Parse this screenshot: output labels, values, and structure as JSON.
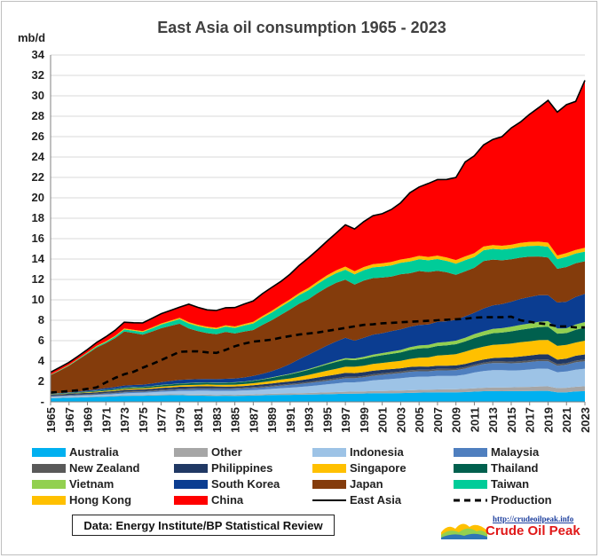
{
  "chart_data": {
    "type": "area",
    "title": "East Asia oil consumption 1965 - 2023",
    "ylabel": "mb/d",
    "ylim": [
      0,
      34
    ],
    "yticks": [
      0,
      2,
      4,
      6,
      8,
      10,
      12,
      14,
      16,
      18,
      20,
      22,
      24,
      26,
      28,
      30,
      32,
      34
    ],
    "ytick_labels": [
      "-",
      "2",
      "4",
      "6",
      "8",
      "10",
      "12",
      "14",
      "16",
      "18",
      "20",
      "22",
      "24",
      "26",
      "28",
      "30",
      "32",
      "34"
    ],
    "x": [
      1965,
      1966,
      1967,
      1968,
      1969,
      1970,
      1971,
      1972,
      1973,
      1974,
      1975,
      1976,
      1977,
      1978,
      1979,
      1980,
      1981,
      1982,
      1983,
      1984,
      1985,
      1986,
      1987,
      1988,
      1989,
      1990,
      1991,
      1992,
      1993,
      1994,
      1995,
      1996,
      1997,
      1998,
      1999,
      2000,
      2001,
      2002,
      2003,
      2004,
      2005,
      2006,
      2007,
      2008,
      2009,
      2010,
      2011,
      2012,
      2013,
      2014,
      2015,
      2016,
      2017,
      2018,
      2019,
      2020,
      2021,
      2022,
      2023
    ],
    "xtick_labels": [
      "1965",
      "1967",
      "1969",
      "1971",
      "1973",
      "1975",
      "1977",
      "1979",
      "1981",
      "1983",
      "1985",
      "1987",
      "1989",
      "1991",
      "1993",
      "1995",
      "1997",
      "1999",
      "2001",
      "2003",
      "2005",
      "2007",
      "2009",
      "2011",
      "2013",
      "2015",
      "2017",
      "2019",
      "2021",
      "2023"
    ],
    "grid": true,
    "legend_position": "bottom",
    "stack_order": [
      "Australia",
      "Other",
      "Indonesia",
      "Malaysia",
      "New Zealand",
      "Philippines",
      "Singapore",
      "Thailand",
      "Vietnam",
      "South Korea",
      "Japan",
      "Taiwan",
      "Hong Kong",
      "China"
    ],
    "series": [
      {
        "name": "Australia",
        "color": "#00b0f0",
        "values": [
          0.36,
          0.38,
          0.41,
          0.43,
          0.45,
          0.48,
          0.51,
          0.54,
          0.58,
          0.6,
          0.6,
          0.62,
          0.64,
          0.65,
          0.66,
          0.63,
          0.62,
          0.6,
          0.58,
          0.6,
          0.59,
          0.6,
          0.62,
          0.64,
          0.67,
          0.69,
          0.69,
          0.7,
          0.71,
          0.73,
          0.75,
          0.77,
          0.79,
          0.81,
          0.82,
          0.84,
          0.84,
          0.85,
          0.86,
          0.88,
          0.9,
          0.92,
          0.93,
          0.94,
          0.93,
          0.96,
          1.0,
          1.04,
          1.05,
          1.04,
          1.05,
          1.05,
          1.06,
          1.08,
          1.08,
          0.93,
          0.94,
          1.02,
          1.05
        ]
      },
      {
        "name": "Other",
        "color": "#a6a6a6",
        "values": [
          0.05,
          0.05,
          0.05,
          0.06,
          0.06,
          0.06,
          0.07,
          0.07,
          0.08,
          0.08,
          0.08,
          0.08,
          0.09,
          0.09,
          0.09,
          0.09,
          0.1,
          0.1,
          0.1,
          0.1,
          0.1,
          0.11,
          0.11,
          0.12,
          0.12,
          0.13,
          0.14,
          0.15,
          0.16,
          0.17,
          0.18,
          0.19,
          0.2,
          0.2,
          0.21,
          0.22,
          0.23,
          0.24,
          0.25,
          0.26,
          0.27,
          0.28,
          0.29,
          0.3,
          0.31,
          0.32,
          0.33,
          0.34,
          0.36,
          0.37,
          0.38,
          0.4,
          0.41,
          0.43,
          0.44,
          0.42,
          0.44,
          0.46,
          0.48
        ]
      },
      {
        "name": "Indonesia",
        "color": "#9dc3e6",
        "values": [
          0.1,
          0.1,
          0.11,
          0.12,
          0.12,
          0.13,
          0.14,
          0.15,
          0.17,
          0.19,
          0.21,
          0.23,
          0.26,
          0.29,
          0.32,
          0.36,
          0.38,
          0.4,
          0.4,
          0.39,
          0.4,
          0.41,
          0.43,
          0.45,
          0.48,
          0.52,
          0.56,
          0.6,
          0.66,
          0.72,
          0.78,
          0.84,
          0.92,
          0.9,
          0.96,
          1.05,
          1.1,
          1.15,
          1.2,
          1.28,
          1.3,
          1.28,
          1.32,
          1.3,
          1.32,
          1.4,
          1.55,
          1.65,
          1.7,
          1.7,
          1.65,
          1.65,
          1.7,
          1.75,
          1.72,
          1.55,
          1.6,
          1.68,
          1.72
        ]
      },
      {
        "name": "Malaysia",
        "color": "#4f7fbf",
        "values": [
          0.05,
          0.05,
          0.05,
          0.06,
          0.06,
          0.07,
          0.08,
          0.09,
          0.1,
          0.1,
          0.1,
          0.11,
          0.12,
          0.13,
          0.14,
          0.15,
          0.16,
          0.17,
          0.17,
          0.17,
          0.18,
          0.19,
          0.2,
          0.21,
          0.23,
          0.25,
          0.27,
          0.29,
          0.31,
          0.34,
          0.36,
          0.38,
          0.4,
          0.4,
          0.42,
          0.45,
          0.48,
          0.5,
          0.52,
          0.53,
          0.53,
          0.52,
          0.54,
          0.55,
          0.55,
          0.58,
          0.62,
          0.67,
          0.7,
          0.7,
          0.7,
          0.72,
          0.73,
          0.74,
          0.75,
          0.65,
          0.66,
          0.72,
          0.74
        ]
      },
      {
        "name": "New Zealand",
        "color": "#595959",
        "values": [
          0.06,
          0.06,
          0.06,
          0.06,
          0.07,
          0.07,
          0.07,
          0.07,
          0.08,
          0.08,
          0.08,
          0.08,
          0.08,
          0.08,
          0.08,
          0.08,
          0.08,
          0.08,
          0.08,
          0.08,
          0.09,
          0.09,
          0.09,
          0.09,
          0.1,
          0.1,
          0.11,
          0.11,
          0.12,
          0.12,
          0.13,
          0.13,
          0.14,
          0.14,
          0.14,
          0.14,
          0.15,
          0.15,
          0.15,
          0.15,
          0.15,
          0.16,
          0.16,
          0.16,
          0.15,
          0.15,
          0.15,
          0.15,
          0.16,
          0.16,
          0.16,
          0.17,
          0.17,
          0.17,
          0.17,
          0.15,
          0.15,
          0.16,
          0.16
        ]
      },
      {
        "name": "Philippines",
        "color": "#203864",
        "values": [
          0.1,
          0.1,
          0.11,
          0.11,
          0.12,
          0.13,
          0.14,
          0.15,
          0.16,
          0.16,
          0.16,
          0.17,
          0.18,
          0.18,
          0.19,
          0.19,
          0.18,
          0.18,
          0.18,
          0.16,
          0.15,
          0.16,
          0.18,
          0.2,
          0.21,
          0.22,
          0.23,
          0.26,
          0.28,
          0.31,
          0.35,
          0.38,
          0.39,
          0.37,
          0.36,
          0.35,
          0.34,
          0.33,
          0.32,
          0.33,
          0.32,
          0.3,
          0.31,
          0.3,
          0.31,
          0.31,
          0.3,
          0.31,
          0.33,
          0.37,
          0.42,
          0.45,
          0.47,
          0.48,
          0.5,
          0.44,
          0.45,
          0.48,
          0.5
        ]
      },
      {
        "name": "Singapore",
        "color": "#ffc000",
        "values": [
          0.02,
          0.03,
          0.03,
          0.04,
          0.05,
          0.06,
          0.07,
          0.08,
          0.09,
          0.1,
          0.1,
          0.11,
          0.12,
          0.13,
          0.14,
          0.15,
          0.16,
          0.17,
          0.17,
          0.18,
          0.18,
          0.19,
          0.2,
          0.22,
          0.24,
          0.27,
          0.3,
          0.35,
          0.4,
          0.45,
          0.5,
          0.55,
          0.6,
          0.62,
          0.64,
          0.66,
          0.68,
          0.7,
          0.72,
          0.78,
          0.85,
          0.9,
          1.0,
          1.05,
          1.1,
          1.2,
          1.25,
          1.25,
          1.28,
          1.3,
          1.35,
          1.4,
          1.4,
          1.4,
          1.4,
          1.35,
          1.35,
          1.3,
          1.35
        ]
      },
      {
        "name": "Thailand",
        "color": "#00604e",
        "values": [
          0.03,
          0.04,
          0.05,
          0.06,
          0.07,
          0.08,
          0.09,
          0.1,
          0.11,
          0.11,
          0.12,
          0.13,
          0.14,
          0.15,
          0.16,
          0.17,
          0.18,
          0.17,
          0.17,
          0.18,
          0.2,
          0.21,
          0.23,
          0.26,
          0.3,
          0.35,
          0.4,
          0.45,
          0.5,
          0.56,
          0.62,
          0.68,
          0.7,
          0.65,
          0.68,
          0.72,
          0.75,
          0.78,
          0.82,
          0.88,
          0.92,
          0.92,
          0.93,
          0.95,
          0.98,
          1.0,
          1.05,
          1.1,
          1.15,
          1.15,
          1.2,
          1.22,
          1.25,
          1.28,
          1.3,
          1.2,
          1.15,
          1.25,
          1.28
        ]
      },
      {
        "name": "Vietnam",
        "color": "#92d050",
        "values": [
          0.02,
          0.02,
          0.02,
          0.02,
          0.03,
          0.03,
          0.03,
          0.03,
          0.03,
          0.03,
          0.03,
          0.03,
          0.03,
          0.03,
          0.03,
          0.03,
          0.03,
          0.03,
          0.03,
          0.03,
          0.03,
          0.03,
          0.04,
          0.04,
          0.05,
          0.05,
          0.06,
          0.07,
          0.08,
          0.09,
          0.1,
          0.12,
          0.14,
          0.16,
          0.18,
          0.2,
          0.21,
          0.23,
          0.25,
          0.27,
          0.29,
          0.3,
          0.32,
          0.33,
          0.35,
          0.37,
          0.39,
          0.4,
          0.42,
          0.44,
          0.46,
          0.48,
          0.5,
          0.52,
          0.55,
          0.5,
          0.48,
          0.52,
          0.55
        ]
      },
      {
        "name": "South Korea",
        "color": "#0b3d91",
        "values": [
          0.03,
          0.04,
          0.05,
          0.07,
          0.09,
          0.12,
          0.15,
          0.17,
          0.2,
          0.2,
          0.21,
          0.23,
          0.26,
          0.31,
          0.35,
          0.34,
          0.34,
          0.34,
          0.35,
          0.37,
          0.38,
          0.4,
          0.44,
          0.52,
          0.6,
          0.75,
          0.95,
          1.2,
          1.4,
          1.58,
          1.75,
          1.88,
          2.0,
          1.75,
          1.88,
          1.95,
          1.95,
          2.0,
          2.02,
          2.0,
          2.0,
          2.0,
          2.05,
          2.02,
          2.05,
          2.1,
          2.1,
          2.25,
          2.3,
          2.35,
          2.45,
          2.55,
          2.6,
          2.6,
          2.55,
          2.55,
          2.6,
          2.7,
          2.75
        ]
      },
      {
        "name": "Japan",
        "color": "#843c0c",
        "values": [
          1.8,
          2.2,
          2.6,
          3.1,
          3.6,
          4.1,
          4.4,
          4.8,
          5.3,
          5.1,
          4.9,
          5.1,
          5.3,
          5.4,
          5.5,
          5.0,
          4.7,
          4.5,
          4.4,
          4.6,
          4.4,
          4.5,
          4.5,
          4.8,
          5.0,
          5.2,
          5.35,
          5.45,
          5.45,
          5.6,
          5.7,
          5.75,
          5.7,
          5.5,
          5.6,
          5.55,
          5.45,
          5.35,
          5.4,
          5.25,
          5.3,
          5.15,
          5.0,
          4.8,
          4.4,
          4.4,
          4.4,
          4.65,
          4.5,
          4.3,
          4.15,
          4.05,
          3.95,
          3.8,
          3.7,
          3.3,
          3.4,
          3.3,
          3.2
        ]
      },
      {
        "name": "Taiwan",
        "color": "#00cc99",
        "values": [
          0.03,
          0.04,
          0.05,
          0.06,
          0.08,
          0.1,
          0.12,
          0.15,
          0.2,
          0.22,
          0.25,
          0.3,
          0.35,
          0.4,
          0.45,
          0.5,
          0.5,
          0.5,
          0.5,
          0.52,
          0.55,
          0.6,
          0.65,
          0.7,
          0.75,
          0.8,
          0.82,
          0.85,
          0.88,
          0.9,
          0.92,
          0.95,
          0.98,
          1.0,
          1.02,
          1.05,
          1.08,
          1.1,
          1.12,
          1.15,
          1.15,
          1.15,
          1.15,
          1.12,
          1.1,
          1.1,
          1.05,
          1.05,
          1.05,
          1.05,
          1.05,
          1.05,
          1.05,
          1.05,
          1.05,
          0.95,
          1.0,
          0.95,
          0.95
        ]
      },
      {
        "name": "Hong Kong",
        "color": "#ffc000",
        "values": [
          0.03,
          0.03,
          0.04,
          0.04,
          0.05,
          0.06,
          0.07,
          0.08,
          0.09,
          0.09,
          0.1,
          0.11,
          0.12,
          0.12,
          0.13,
          0.13,
          0.13,
          0.13,
          0.13,
          0.13,
          0.14,
          0.14,
          0.15,
          0.16,
          0.17,
          0.18,
          0.19,
          0.2,
          0.22,
          0.24,
          0.26,
          0.28,
          0.3,
          0.3,
          0.31,
          0.32,
          0.33,
          0.33,
          0.33,
          0.34,
          0.33,
          0.33,
          0.34,
          0.33,
          0.35,
          0.37,
          0.38,
          0.37,
          0.37,
          0.37,
          0.38,
          0.39,
          0.4,
          0.4,
          0.4,
          0.36,
          0.36,
          0.36,
          0.38
        ]
      },
      {
        "name": "China",
        "color": "#ff0000",
        "values": [
          0.22,
          0.24,
          0.25,
          0.26,
          0.28,
          0.34,
          0.44,
          0.54,
          0.62,
          0.7,
          0.8,
          0.88,
          0.95,
          1.0,
          1.05,
          1.75,
          1.7,
          1.65,
          1.7,
          1.72,
          1.85,
          1.95,
          2.05,
          2.2,
          2.3,
          2.3,
          2.45,
          2.7,
          2.95,
          3.1,
          3.35,
          3.65,
          4.1,
          4.15,
          4.45,
          4.75,
          4.85,
          5.15,
          5.55,
          6.4,
          6.75,
          7.2,
          7.45,
          7.65,
          8.1,
          9.25,
          9.55,
          9.95,
          10.35,
          10.7,
          11.45,
          11.85,
          12.5,
          13.15,
          13.95,
          14.05,
          14.55,
          14.55,
          16.4
        ]
      }
    ],
    "lines": [
      {
        "name": "East Asia",
        "color": "#000000",
        "style": "solid",
        "note": "total of stacked series"
      },
      {
        "name": "Production",
        "color": "#000000",
        "style": "dashed",
        "values": [
          0.9,
          0.98,
          1.06,
          1.14,
          1.28,
          1.42,
          1.9,
          2.35,
          2.7,
          2.95,
          3.35,
          3.7,
          4.1,
          4.5,
          4.9,
          4.95,
          4.95,
          4.85,
          4.8,
          5.1,
          5.45,
          5.7,
          5.9,
          6.0,
          6.1,
          6.3,
          6.45,
          6.6,
          6.7,
          6.8,
          6.95,
          7.1,
          7.25,
          7.4,
          7.55,
          7.6,
          7.7,
          7.75,
          7.8,
          7.85,
          7.9,
          7.95,
          8.0,
          8.05,
          8.1,
          8.15,
          8.25,
          8.3,
          8.3,
          8.3,
          8.35,
          8.0,
          7.85,
          7.7,
          7.6,
          7.4,
          7.4,
          7.3,
          7.3
        ]
      }
    ]
  },
  "legend": [
    {
      "label": "Australia",
      "color": "#00b0f0",
      "kind": "box"
    },
    {
      "label": "Other",
      "color": "#a6a6a6",
      "kind": "box"
    },
    {
      "label": "Indonesia",
      "color": "#9dc3e6",
      "kind": "box"
    },
    {
      "label": "Malaysia",
      "color": "#4f7fbf",
      "kind": "box"
    },
    {
      "label": "New Zealand",
      "color": "#595959",
      "kind": "box"
    },
    {
      "label": "Philippines",
      "color": "#203864",
      "kind": "box"
    },
    {
      "label": "Singapore",
      "color": "#ffc000",
      "kind": "box"
    },
    {
      "label": "Thailand",
      "color": "#00604e",
      "kind": "box"
    },
    {
      "label": "Vietnam",
      "color": "#92d050",
      "kind": "box"
    },
    {
      "label": "South Korea",
      "color": "#0b3d91",
      "kind": "box"
    },
    {
      "label": "Japan",
      "color": "#843c0c",
      "kind": "box"
    },
    {
      "label": "Taiwan",
      "color": "#00cc99",
      "kind": "box"
    },
    {
      "label": "Hong Kong",
      "color": "#ffc000",
      "kind": "box"
    },
    {
      "label": "China",
      "color": "#ff0000",
      "kind": "box"
    },
    {
      "label": "East Asia",
      "color": "#000000",
      "kind": "line"
    },
    {
      "label": "Production",
      "color": "#000000",
      "kind": "dash"
    }
  ],
  "source_note": "Data: Energy Institute/BP Statistical Review",
  "brand": {
    "url": "http://crudeoilpeak.info",
    "name": "Crude Oil Peak"
  }
}
